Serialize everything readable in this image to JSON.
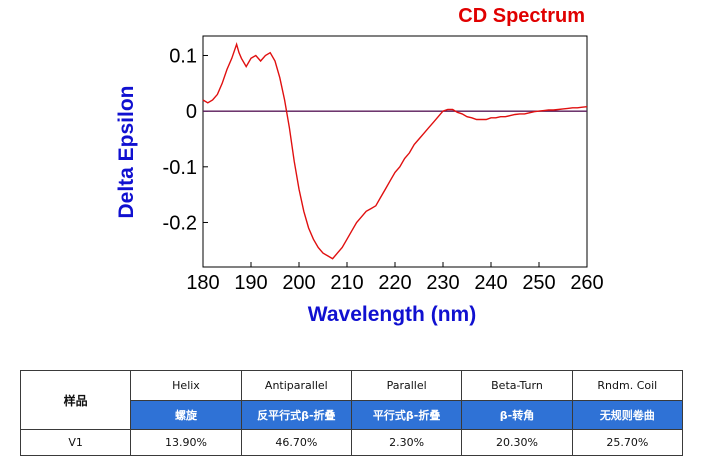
{
  "chart_data": {
    "type": "line",
    "title": "CD Spectrum",
    "xlabel": "Wavelength (nm)",
    "ylabel": "Delta Epsilon",
    "xlim": [
      180,
      260
    ],
    "ylim": [
      -0.28,
      0.135
    ],
    "xticks": [
      180,
      190,
      200,
      210,
      220,
      230,
      240,
      250,
      260
    ],
    "yticks": [
      0.1,
      0,
      -0.1,
      -0.2
    ],
    "ytick_labels": [
      "0.1",
      "0",
      "-0.1",
      "-0.2"
    ],
    "baseline": 0,
    "grid": false,
    "colors": {
      "line": "#e01010",
      "baseline": "#5a1a5a",
      "title": "#e00000",
      "axis_title": "#1010d0"
    },
    "series": [
      {
        "x": [
          180,
          181,
          182,
          183,
          184,
          185,
          186,
          187,
          187.5,
          188,
          189,
          190,
          191,
          192,
          193,
          194,
          195,
          196,
          197,
          198,
          199,
          200,
          201,
          202,
          203,
          204,
          205,
          206,
          207,
          208,
          209,
          210,
          211,
          212,
          213,
          214,
          215,
          216,
          217,
          218,
          219,
          220,
          221,
          222,
          223,
          224,
          225,
          226,
          227,
          228,
          229,
          230,
          231,
          232,
          233,
          234,
          235,
          236,
          237,
          238,
          239,
          240,
          241,
          242,
          243,
          244,
          245,
          246,
          247,
          248,
          249,
          250,
          251,
          252,
          253,
          254,
          255,
          256,
          257,
          258,
          259,
          260
        ],
        "y": [
          0.02,
          0.015,
          0.02,
          0.03,
          0.05,
          0.075,
          0.095,
          0.12,
          0.105,
          0.095,
          0.08,
          0.095,
          0.1,
          0.09,
          0.1,
          0.105,
          0.09,
          0.06,
          0.02,
          -0.03,
          -0.09,
          -0.14,
          -0.18,
          -0.21,
          -0.23,
          -0.245,
          -0.255,
          -0.26,
          -0.265,
          -0.255,
          -0.245,
          -0.23,
          -0.215,
          -0.2,
          -0.19,
          -0.18,
          -0.175,
          -0.17,
          -0.155,
          -0.14,
          -0.125,
          -0.11,
          -0.1,
          -0.085,
          -0.075,
          -0.06,
          -0.05,
          -0.04,
          -0.03,
          -0.02,
          -0.01,
          0,
          0.003,
          0.003,
          -0.002,
          -0.005,
          -0.01,
          -0.012,
          -0.015,
          -0.015,
          -0.015,
          -0.012,
          -0.012,
          -0.01,
          -0.01,
          -0.008,
          -0.006,
          -0.005,
          -0.005,
          -0.003,
          -0.001,
          0,
          0.001,
          0.002,
          0.002,
          0.003,
          0.004,
          0.005,
          0.006,
          0.006,
          0.007,
          0.008
        ]
      }
    ]
  },
  "table": {
    "sample_header": "样品",
    "columns": [
      {
        "en": "Helix",
        "cn": "螺旋"
      },
      {
        "en": "Antiparallel",
        "cn": "反平行式β-折叠"
      },
      {
        "en": "Parallel",
        "cn": "平行式β-折叠"
      },
      {
        "en": "Beta-Turn",
        "cn": "β-转角"
      },
      {
        "en": "Rndm. Coil",
        "cn": "无规则卷曲"
      }
    ],
    "rows": [
      {
        "sample": "V1",
        "values": [
          "13.90%",
          "46.70%",
          "2.30%",
          "20.30%",
          "25.70%"
        ]
      }
    ]
  }
}
